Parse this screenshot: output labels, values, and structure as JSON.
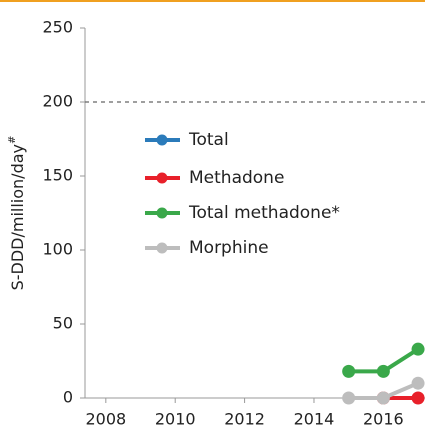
{
  "chart_data": {
    "type": "line",
    "ylabel": "S-DDD/million/day",
    "ylabel_sup": "#",
    "x": [
      2015,
      2016,
      2017
    ],
    "series": [
      {
        "name": "Total",
        "color": "#2b7bba",
        "values": [
          null,
          null,
          null
        ]
      },
      {
        "name": "Methadone",
        "color": "#e8202a",
        "values": [
          null,
          0,
          0
        ]
      },
      {
        "name": "Total methadone*",
        "color": "#3aa84a",
        "values": [
          18,
          18,
          33
        ]
      },
      {
        "name": "Morphine",
        "color": "#bdbdbd",
        "values": [
          0,
          0,
          10
        ]
      }
    ],
    "xlim": [
      2007.4,
      2017.2
    ],
    "xticks": [
      2008,
      2010,
      2012,
      2014,
      2016
    ],
    "ylim": [
      0,
      250
    ],
    "yticks": [
      0,
      50,
      100,
      150,
      200,
      250
    ],
    "reference_line": 200,
    "reference_color": "#666666"
  }
}
